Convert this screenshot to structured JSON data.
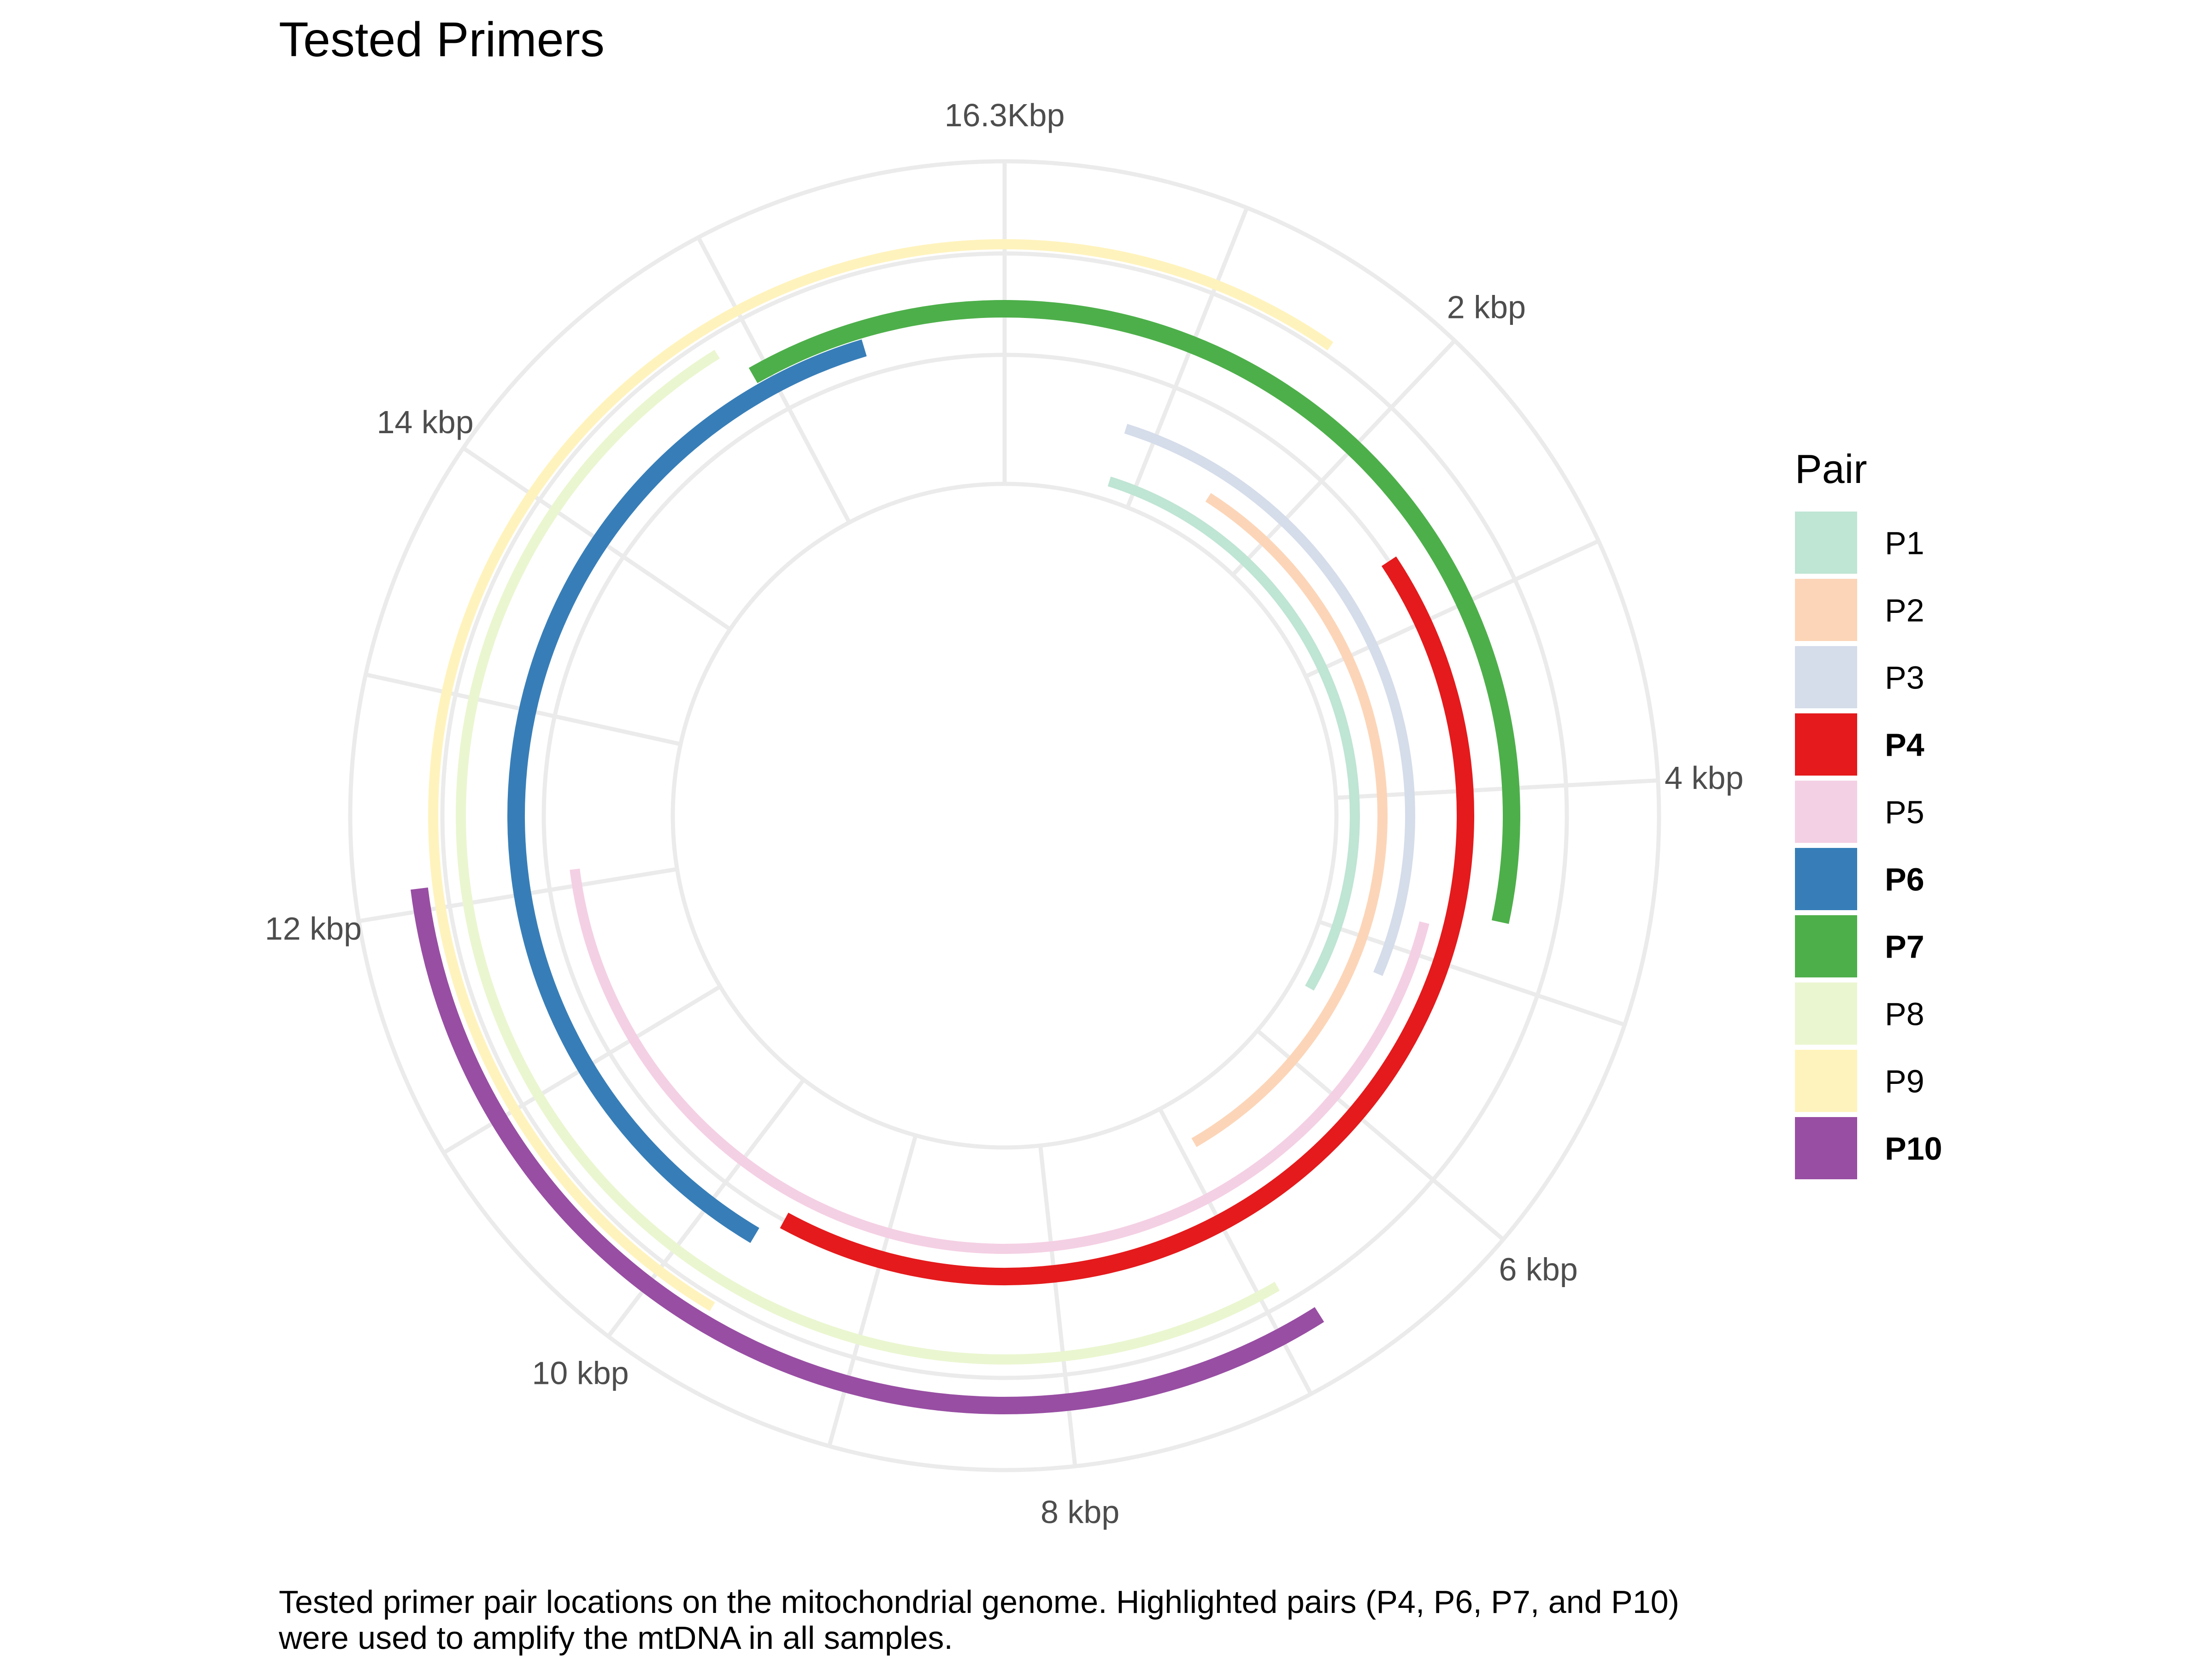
{
  "chart_data": {
    "type": "radial-arc",
    "title": "Tested Primers",
    "caption_lines": [
      "Tested primer pair locations on the mitochondrial genome. Highlighted pairs (P4, P6, P7, and P10)",
      "were used to amplify the mtDNA in all samples."
    ],
    "genome_length_bp": 16569,
    "theta_ticks": [
      {
        "value": 0,
        "label": "16.3Kbp"
      },
      {
        "value": 2000,
        "label": "2 kbp"
      },
      {
        "value": 4000,
        "label": "4 kbp"
      },
      {
        "value": 6000,
        "label": "6 kbp"
      },
      {
        "value": 8000,
        "label": "8 kbp"
      },
      {
        "value": 10000,
        "label": "10 kbp"
      },
      {
        "value": 12000,
        "label": "12 kbp"
      },
      {
        "value": 14000,
        "label": "14 kbp"
      }
    ],
    "legend_title": "Pair",
    "series": [
      {
        "name": "P1",
        "start": 800,
        "end": 5500,
        "color": "#bfe5d4",
        "highlight": false
      },
      {
        "name": "P2",
        "start": 1500,
        "end": 6900,
        "color": "#fcd5b8",
        "highlight": false
      },
      {
        "name": "P3",
        "start": 800,
        "end": 5200,
        "color": "#d5dcea",
        "highlight": false
      },
      {
        "name": "P4",
        "start": 2600,
        "end": 9600,
        "color": "#e41a1c",
        "highlight": true
      },
      {
        "name": "P5",
        "start": 4800,
        "end": 12100,
        "color": "#f4d0e4",
        "highlight": false
      },
      {
        "name": "P6",
        "start": 9700,
        "end": 15800,
        "color": "#377eb8",
        "highlight": true
      },
      {
        "name": "P7",
        "start": 15200,
        "end": 4700,
        "color": "#4daf4a",
        "highlight": true
      },
      {
        "name": "P8",
        "start": 6900,
        "end": 15100,
        "color": "#eaf6d0",
        "highlight": false
      },
      {
        "name": "P9",
        "start": 9700,
        "end": 1600,
        "color": "#fff3bd",
        "highlight": false
      },
      {
        "name": "P10",
        "start": 6800,
        "end": 12100,
        "color": "#984ea3",
        "highlight": true
      }
    ]
  }
}
